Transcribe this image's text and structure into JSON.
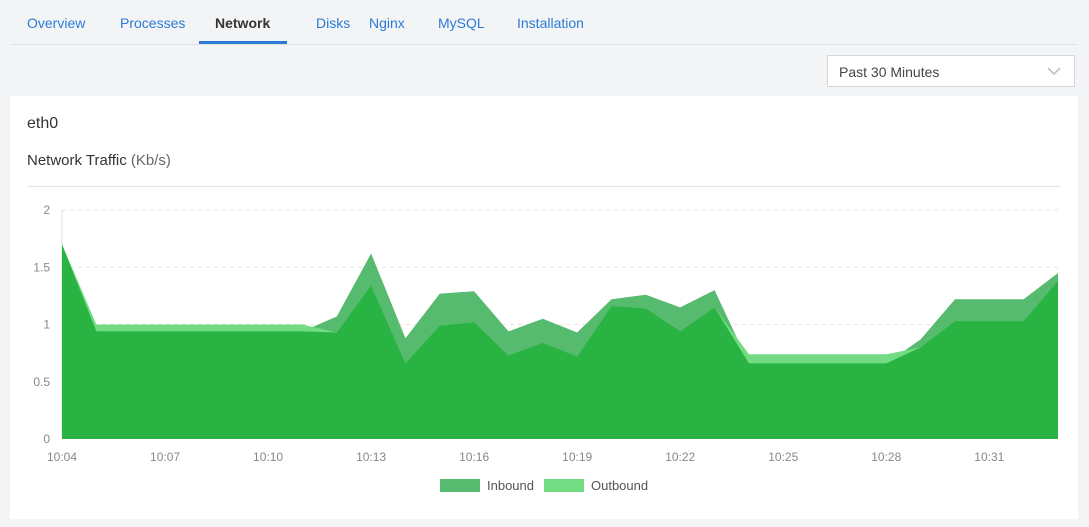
{
  "tabs": [
    {
      "label": "Overview",
      "active": false
    },
    {
      "label": "Processes",
      "active": false
    },
    {
      "label": "Network",
      "active": true
    },
    {
      "label": "Disks",
      "active": false
    },
    {
      "label": "Nginx",
      "active": false
    },
    {
      "label": "MySQL",
      "active": false
    },
    {
      "label": "Installation",
      "active": false
    }
  ],
  "time_range": {
    "selected": "Past 30 Minutes",
    "icon": "chevron-down-icon"
  },
  "card": {
    "interface": "eth0",
    "title": "Network Traffic",
    "unit": "(Kb/s)"
  },
  "chart_data": {
    "type": "area",
    "title": "Network Traffic (Kb/s)",
    "x": [
      "10:04",
      "10:05",
      "10:06",
      "10:07",
      "10:08",
      "10:09",
      "10:10",
      "10:11",
      "10:12",
      "10:13",
      "10:14",
      "10:15",
      "10:16",
      "10:17",
      "10:18",
      "10:19",
      "10:20",
      "10:21",
      "10:22",
      "10:23",
      "10:24",
      "10:25",
      "10:26",
      "10:27",
      "10:28",
      "10:29",
      "10:30",
      "10:31",
      "10:32",
      "10:33"
    ],
    "x_tick_labels": [
      "10:04",
      "10:07",
      "10:10",
      "10:13",
      "10:16",
      "10:19",
      "10:22",
      "10:25",
      "10:28",
      "10:31"
    ],
    "y_tick_labels": [
      "0",
      "0.5",
      "1",
      "1.5",
      "2"
    ],
    "ylim": [
      0,
      2
    ],
    "grid": true,
    "legend": "bottom",
    "series": [
      {
        "name": "Inbound",
        "color": "#57bb6f",
        "values": [
          1.7,
          0.94,
          0.94,
          0.94,
          0.94,
          0.94,
          0.94,
          0.94,
          1.07,
          1.62,
          0.88,
          1.27,
          1.29,
          0.94,
          1.05,
          0.93,
          1.22,
          1.26,
          1.15,
          1.3,
          0.66,
          0.66,
          0.66,
          0.66,
          0.66,
          0.87,
          1.22,
          1.22,
          1.22,
          1.45
        ]
      },
      {
        "name": "Outbound",
        "color": "#72db83",
        "values": [
          1.7,
          1.0,
          1.0,
          1.0,
          1.0,
          1.0,
          1.0,
          1.0,
          0.93,
          1.34,
          0.66,
          0.99,
          1.02,
          0.73,
          0.84,
          0.72,
          1.16,
          1.14,
          0.94,
          1.15,
          0.74,
          0.74,
          0.74,
          0.74,
          0.74,
          0.8,
          1.03,
          1.03,
          1.03,
          1.38
        ]
      }
    ],
    "overlap_color": "#29b342"
  }
}
